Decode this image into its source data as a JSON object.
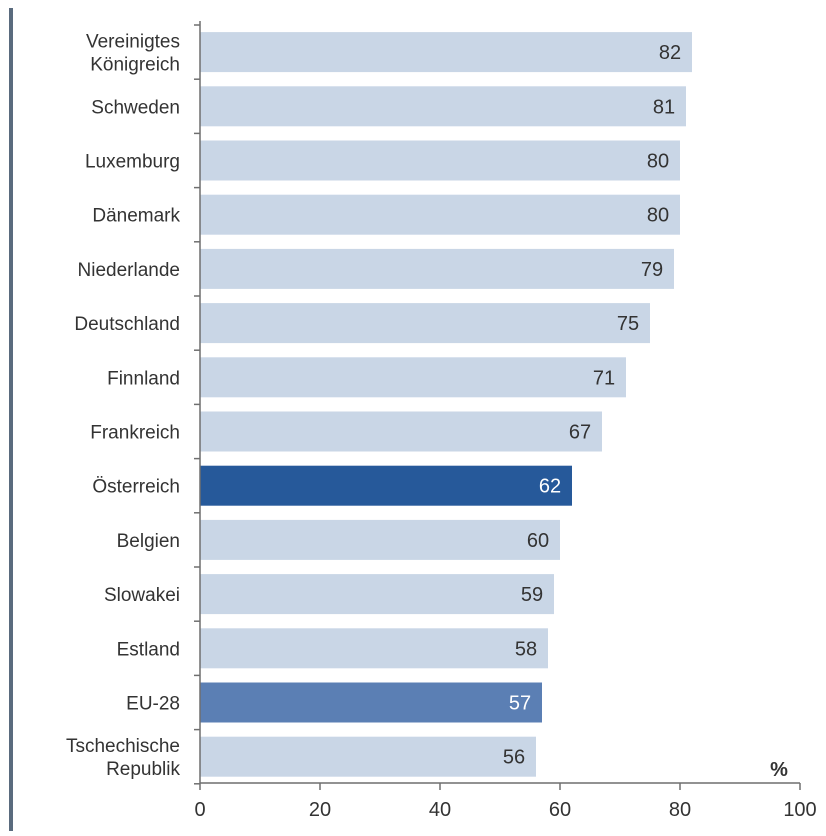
{
  "chart_data": {
    "type": "bar",
    "orientation": "horizontal",
    "categories": [
      "Vereinigtes Königreich",
      "Schweden",
      "Luxemburg",
      "Dänemark",
      "Niederlande",
      "Deutschland",
      "Finnland",
      "Frankreich",
      "Österreich",
      "Belgien",
      "Slowakei",
      "Estland",
      "EU-28",
      "Tschechische Republik"
    ],
    "category_lines": [
      [
        "Vereinigtes",
        "Königreich"
      ],
      [
        "Schweden"
      ],
      [
        "Luxemburg"
      ],
      [
        "Dänemark"
      ],
      [
        "Niederlande"
      ],
      [
        "Deutschland"
      ],
      [
        "Finnland"
      ],
      [
        "Frankreich"
      ],
      [
        "Österreich"
      ],
      [
        "Belgien"
      ],
      [
        "Slowakei"
      ],
      [
        "Estland"
      ],
      [
        "EU-28"
      ],
      [
        "Tschechische",
        "Republik"
      ]
    ],
    "values": [
      82,
      81,
      80,
      80,
      79,
      75,
      71,
      67,
      62,
      60,
      59,
      58,
      57,
      56
    ],
    "value_labels": [
      "82",
      "81",
      "80",
      "80",
      "79",
      "75",
      "71",
      "67",
      "62",
      "60",
      "59",
      "58",
      "57",
      "56"
    ],
    "bar_colors": [
      "#c9d6e6",
      "#c9d6e6",
      "#c9d6e6",
      "#c9d6e6",
      "#c9d6e6",
      "#c9d6e6",
      "#c9d6e6",
      "#c9d6e6",
      "#26599a",
      "#c9d6e6",
      "#c9d6e6",
      "#c9d6e6",
      "#5b7fb4",
      "#c9d6e6"
    ],
    "label_colors": [
      "#333333",
      "#333333",
      "#333333",
      "#333333",
      "#333333",
      "#333333",
      "#333333",
      "#333333",
      "#ffffff",
      "#333333",
      "#333333",
      "#333333",
      "#ffffff",
      "#333333"
    ],
    "xlim": [
      0,
      100
    ],
    "xticks": [
      0,
      20,
      40,
      60,
      80,
      100
    ],
    "xtick_labels": [
      "0",
      "20",
      "40",
      "60",
      "80",
      "100"
    ],
    "unit_label": "%",
    "grid": false,
    "title": "",
    "xlabel": "",
    "ylabel": ""
  },
  "colors": {
    "axis": "#6f6f6f",
    "text": "#333333",
    "left_rule": "#5a6b7e"
  }
}
